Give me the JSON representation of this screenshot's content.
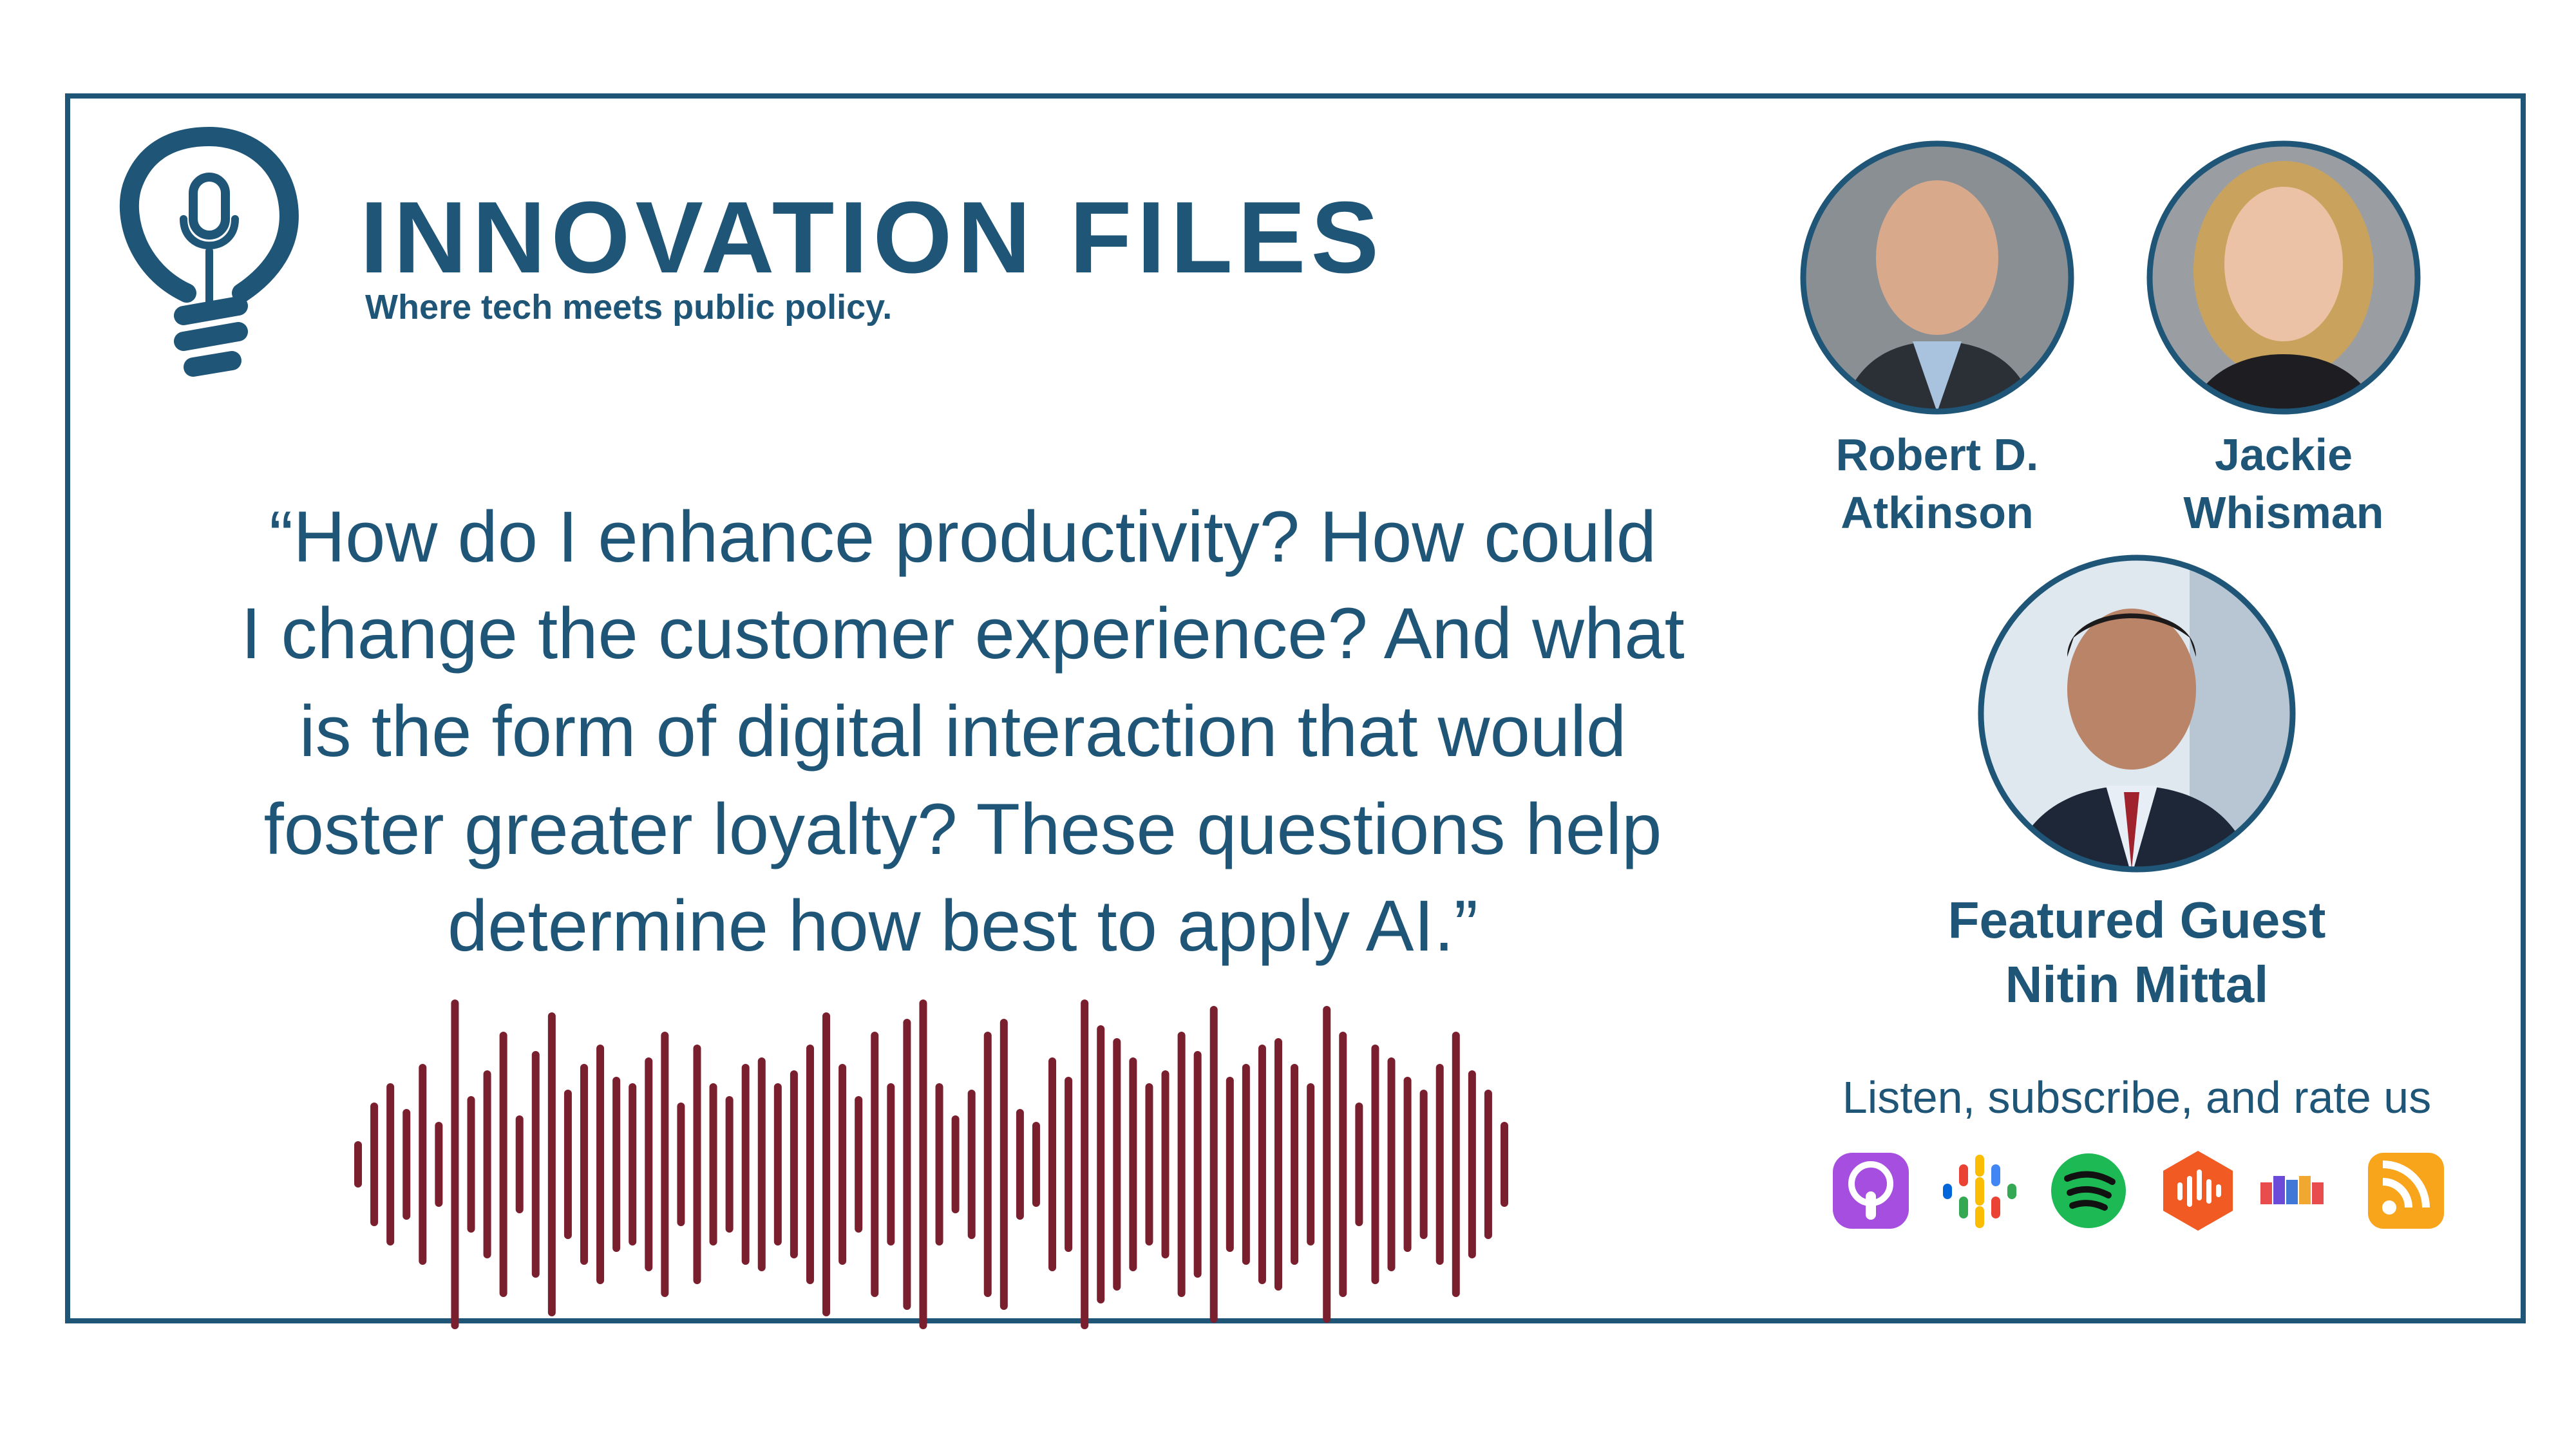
{
  "header": {
    "title": "INNOVATION FILES",
    "tagline": "Where tech meets public policy."
  },
  "quote": {
    "lines": [
      "“How do I enhance productivity? How could",
      "I change the customer experience? And what",
      "is the form of digital interaction that would",
      "foster greater loyalty? These questions help",
      "determine how best to apply AI.”"
    ]
  },
  "hosts": [
    {
      "name_lines": [
        "Robert D.",
        "Atkinson"
      ]
    },
    {
      "name_lines": [
        "Jackie",
        "Whisman"
      ]
    }
  ],
  "guest": {
    "label": "Featured Guest",
    "name": "Nitin Mittal"
  },
  "subscribe": {
    "text": "Listen, subscribe, and rate us"
  }
}
